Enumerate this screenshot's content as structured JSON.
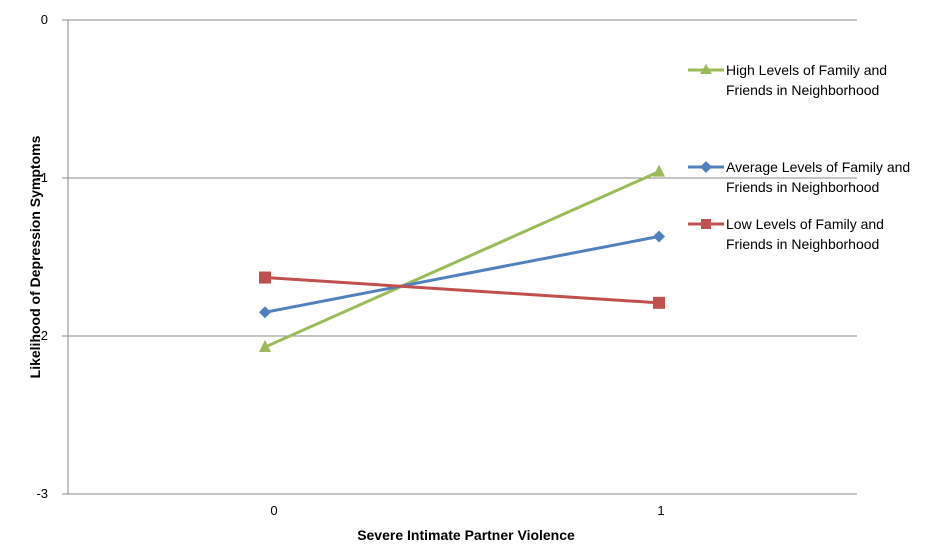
{
  "chart_data": {
    "type": "line",
    "categories": [
      "0",
      "1"
    ],
    "x": [
      0,
      1
    ],
    "xlabel": "Severe Intimate Partner Violence",
    "ylabel": "Likelihood of Depression Symptoms",
    "ylim": [
      -3,
      0
    ],
    "yticks": [
      "0",
      "-1",
      "-2",
      "-3"
    ],
    "grid": "horizontal",
    "legend_position": "right",
    "series": [
      {
        "name": "High Levels of Family and Friends in Neighborhood",
        "values": [
          -2.07,
          -0.96
        ],
        "color": "#9BBB59",
        "marker": "triangle"
      },
      {
        "name": "Average Levels of Family and Friends in Neighborhood",
        "values": [
          -1.85,
          -1.37
        ],
        "color": "#4F81BD",
        "marker": "diamond"
      },
      {
        "name": "Low Levels of Family and Friends in Neighborhood",
        "values": [
          -1.63,
          -1.79
        ],
        "color": "#C0504D",
        "marker": "square"
      }
    ]
  }
}
